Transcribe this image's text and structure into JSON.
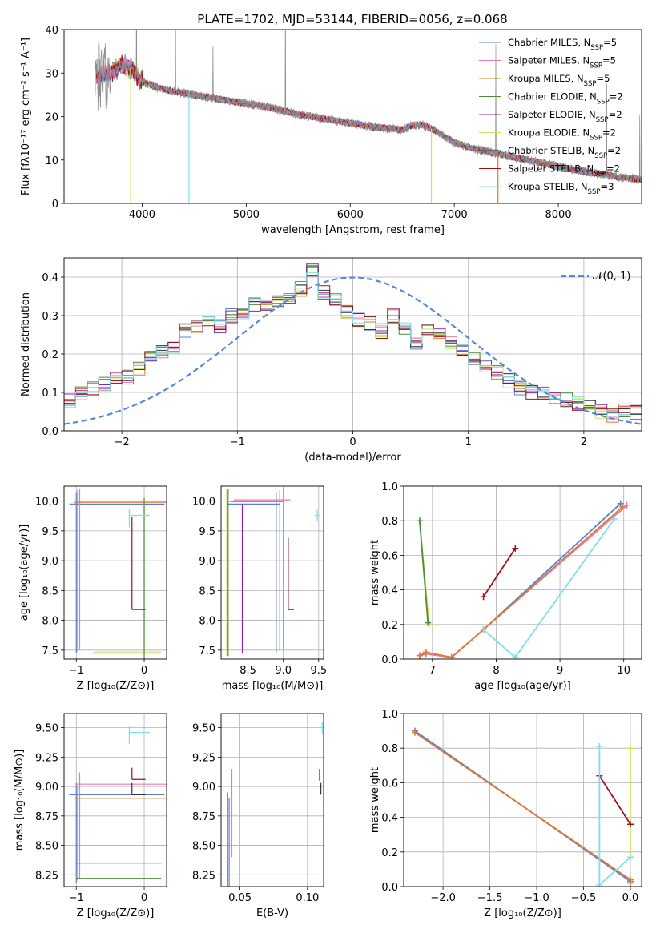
{
  "chart_data": [
    {
      "type": "line",
      "title": "PLATE=1702, MJD=53144, FIBERID=0056, z=0.068",
      "xlabel": "wavelength [Angstrom, rest frame]",
      "ylabel": "Flux [fλ10⁻¹⁷ erg cm⁻² s⁻¹ A⁻¹]",
      "xlim": [
        3250,
        8800
      ],
      "ylim": [
        0,
        40
      ],
      "xticks": [
        "4000",
        "5000",
        "6000",
        "7000",
        "8000"
      ],
      "yticks": [
        "0",
        "10",
        "20",
        "30",
        "40"
      ],
      "legend_position": "upper-right",
      "legend": [
        {
          "label": "Chabrier MILES, N",
          "sub": "SSP",
          "tail": "=5",
          "color": "#5b7fd4"
        },
        {
          "label": "Salpeter MILES, N",
          "sub": "SSP",
          "tail": "=5",
          "color": "#e67bb1"
        },
        {
          "label": "Kroupa MILES, N",
          "sub": "SSP",
          "tail": "=5",
          "color": "#b8860b"
        },
        {
          "label": "Chabrier ELODIE, N",
          "sub": "SSP",
          "tail": "=2",
          "color": "#4e8b3a"
        },
        {
          "label": "Salpeter ELODIE, N",
          "sub": "SSP",
          "tail": "=2",
          "color": "#8e24aa"
        },
        {
          "label": "Kroupa ELODIE, N",
          "sub": "SSP",
          "tail": "=2",
          "color": "#d4e157"
        },
        {
          "label": "Chabrier STELIB, N",
          "sub": "SSP",
          "tail": "=2",
          "color": "#333333"
        },
        {
          "label": "Salpeter STELIB, N",
          "sub": "SSP",
          "tail": "=2",
          "color": "#a01018"
        },
        {
          "label": "Kroupa STELIB, N",
          "sub": "SSP",
          "tail": "=3",
          "color": "#80deea"
        }
      ],
      "data_color": "#8c8c8c",
      "continuum": {
        "x": [
          3550,
          3700,
          3800,
          3900,
          4000,
          4100,
          4250,
          4500,
          4750,
          5000,
          5250,
          5500,
          5750,
          6000,
          6250,
          6500,
          6600,
          6700,
          6800,
          7000,
          7200,
          7400,
          7600,
          7800,
          8000,
          8200,
          8400,
          8600,
          8800
        ],
        "y": [
          29,
          30,
          32,
          31,
          28,
          27,
          26,
          25,
          24,
          23,
          22,
          20.5,
          19.5,
          18.5,
          17.5,
          17,
          18,
          18,
          17,
          14,
          12.5,
          11.5,
          10.5,
          9.5,
          8.5,
          7.5,
          6.8,
          6,
          5.5
        ]
      }
    },
    {
      "type": "line",
      "title": "",
      "xlabel": "(data-model)/error",
      "ylabel": "Normed distribution",
      "xlim": [
        -2.5,
        2.5
      ],
      "ylim": [
        0,
        0.45
      ],
      "xticks": [
        "−2",
        "−1",
        "0",
        "1",
        "2"
      ],
      "yticks": [
        "0.0",
        "0.1",
        "0.2",
        "0.3",
        "0.4"
      ],
      "legend": "𝒩(0, 1)",
      "legend_position": "upper-right",
      "gauss_color": "#5b87d9",
      "hist_edges": [
        -2.5,
        -2.4,
        -2.3,
        -2.2,
        -2.1,
        -2.0,
        -1.9,
        -1.8,
        -1.7,
        -1.6,
        -1.5,
        -1.4,
        -1.3,
        -1.2,
        -1.1,
        -1.0,
        -0.9,
        -0.8,
        -0.7,
        -0.6,
        -0.5,
        -0.4,
        -0.3,
        -0.2,
        -0.1,
        0.0,
        0.1,
        0.2,
        0.3,
        0.4,
        0.5,
        0.6,
        0.7,
        0.8,
        0.9,
        1.0,
        1.1,
        1.2,
        1.3,
        1.4,
        1.5,
        1.6,
        1.7,
        1.8,
        1.9,
        2.0,
        2.1,
        2.2,
        2.3,
        2.4,
        2.5
      ],
      "hist_values": [
        0.08,
        0.1,
        0.11,
        0.12,
        0.14,
        0.14,
        0.16,
        0.19,
        0.21,
        0.22,
        0.26,
        0.27,
        0.29,
        0.27,
        0.3,
        0.31,
        0.33,
        0.32,
        0.34,
        0.35,
        0.37,
        0.42,
        0.36,
        0.34,
        0.31,
        0.29,
        0.28,
        0.26,
        0.3,
        0.27,
        0.23,
        0.26,
        0.25,
        0.23,
        0.21,
        0.19,
        0.17,
        0.15,
        0.13,
        0.11,
        0.1,
        0.1,
        0.09,
        0.08,
        0.07,
        0.06,
        0.05,
        0.04,
        0.05,
        0.05
      ]
    },
    {
      "type": "scatter",
      "xlabel": "Z [log₁₀(Z/Z⊙)]",
      "ylabel": "age  [log₁₀(age/yr)]",
      "xlim": [
        -1.18,
        0.33
      ],
      "ylim": [
        7.35,
        10.25
      ],
      "xticks": [
        "−1",
        "0"
      ],
      "yticks": [
        "7.5",
        "8.0",
        "8.5",
        "9.0",
        "9.5",
        "10.0"
      ]
    },
    {
      "type": "scatter",
      "xlabel": "mass [log₁₀(M/M⊙)]",
      "ylabel": "",
      "xlim": [
        8.12,
        9.57
      ],
      "ylim": [
        7.35,
        10.25
      ],
      "xticks": [
        "8.5",
        "9.0",
        "9.5"
      ],
      "yticks": [
        "7.5",
        "8.0",
        "8.5",
        "9.0",
        "9.5",
        "10.0"
      ]
    },
    {
      "type": "line",
      "xlabel": "age  [log₁₀(age/yr)]",
      "ylabel": "mass weight",
      "xlim": [
        6.55,
        10.28
      ],
      "ylim": [
        0,
        1
      ],
      "xticks": [
        "7",
        "8",
        "9",
        "10"
      ],
      "yticks": [
        "0.0",
        "0.2",
        "0.4",
        "0.6",
        "0.8",
        "1.0"
      ],
      "series": [
        {
          "color": "#5b7fd4",
          "x": [
            6.8,
            6.9,
            7.3,
            7.8,
            9.95
          ],
          "y": [
            0.02,
            0.03,
            0.01,
            0.17,
            0.9
          ]
        },
        {
          "color": "#e67bb1",
          "x": [
            6.8,
            6.9,
            7.3,
            7.8,
            10.05
          ],
          "y": [
            0.02,
            0.03,
            0.01,
            0.17,
            0.89
          ]
        },
        {
          "color": "#e07a30",
          "x": [
            6.8,
            6.9,
            7.3,
            7.8,
            9.98
          ],
          "y": [
            0.02,
            0.04,
            0.01,
            0.17,
            0.88
          ]
        },
        {
          "color": "#d4e157",
          "x": [
            6.8,
            6.95
          ],
          "y": [
            0.8,
            0.2
          ]
        },
        {
          "color": "#4e8b3a",
          "x": [
            6.8,
            6.93
          ],
          "y": [
            0.8,
            0.21
          ]
        },
        {
          "color": "#a01018",
          "x": [
            7.8,
            8.3
          ],
          "y": [
            0.36,
            0.64
          ]
        },
        {
          "color": "#80deea",
          "x": [
            7.8,
            8.3,
            9.85
          ],
          "y": [
            0.17,
            0.01,
            0.81
          ]
        }
      ]
    },
    {
      "type": "scatter",
      "xlabel": "Z [log₁₀(Z/Z⊙)]",
      "ylabel": "mass [log₁₀(M/M⊙)]",
      "xlim": [
        -1.18,
        0.33
      ],
      "ylim": [
        8.15,
        9.62
      ],
      "xticks": [
        "−1",
        "0"
      ],
      "yticks": [
        "8.25",
        "8.50",
        "8.75",
        "9.00",
        "9.25",
        "9.50"
      ]
    },
    {
      "type": "scatter",
      "xlabel": "E(B-V)",
      "ylabel": "",
      "xlim": [
        0.036,
        0.112
      ],
      "ylim": [
        8.15,
        9.62
      ],
      "xticks": [
        "0.05",
        "0.10"
      ],
      "yticks": [
        "8.25",
        "8.50",
        "8.75",
        "9.00",
        "9.25",
        "9.50"
      ]
    },
    {
      "type": "line",
      "xlabel": "Z [log₁₀(Z/Z⊙)]",
      "ylabel": "mass weight",
      "xlim": [
        -2.42,
        0.12
      ],
      "ylim": [
        0,
        1
      ],
      "xticks": [
        "−2.0",
        "−1.5",
        "−1.0",
        "−0.5",
        "0.0"
      ],
      "yticks": [
        "0.0",
        "0.2",
        "0.4",
        "0.6",
        "0.8",
        "1.0"
      ],
      "series": [
        {
          "color": "#5b7fd4",
          "x": [
            -2.3,
            0.0,
            0.0
          ],
          "y": [
            0.9,
            0.03,
            0.02
          ]
        },
        {
          "color": "#e07a30",
          "x": [
            -2.3,
            0.0,
            0.0
          ],
          "y": [
            0.89,
            0.04,
            0.02
          ]
        },
        {
          "color": "#d4e157",
          "x": [
            0.0,
            0.0
          ],
          "y": [
            0.8,
            0.2
          ]
        },
        {
          "color": "#a01018",
          "x": [
            -0.33,
            0.0
          ],
          "y": [
            0.64,
            0.36
          ]
        },
        {
          "color": "#80deea",
          "x": [
            -0.33,
            -0.33,
            0.0
          ],
          "y": [
            0.81,
            0.01,
            0.17
          ]
        }
      ]
    }
  ]
}
